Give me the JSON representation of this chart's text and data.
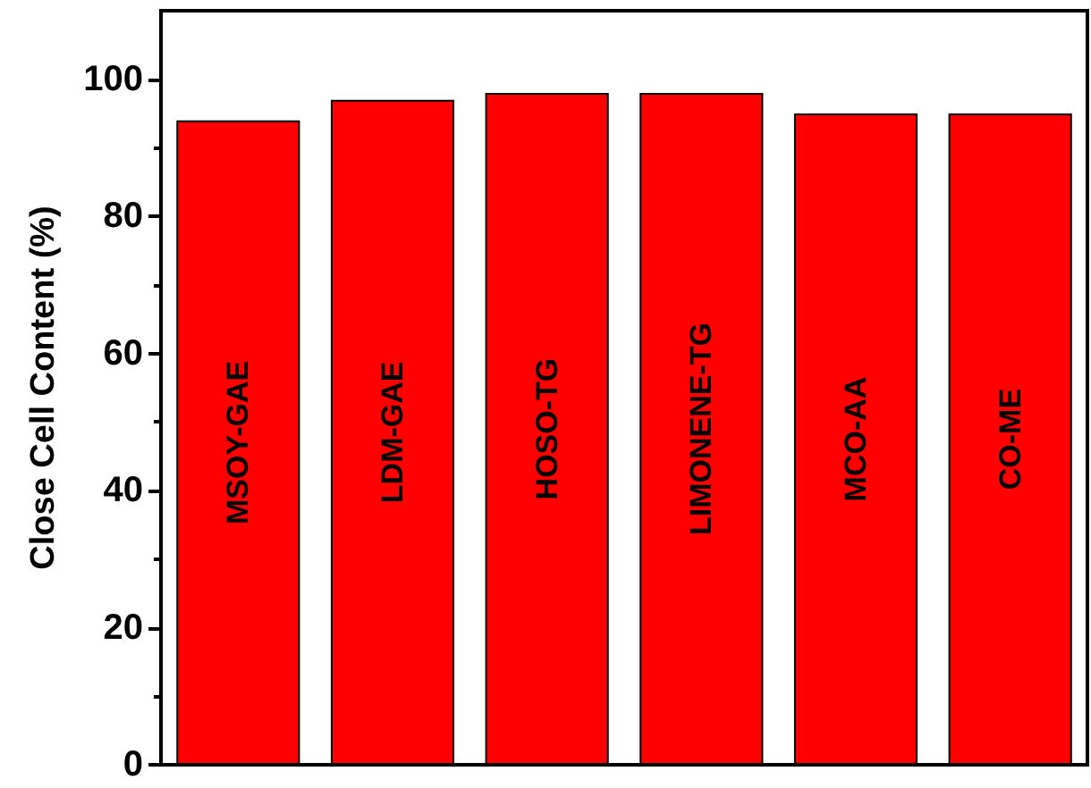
{
  "chart_data": {
    "type": "bar",
    "ylabel": "Close Cell Content (%)",
    "categories": [
      "MSOY-GAE",
      "LDM-GAE",
      "HOSO-TG",
      "LIMONENE-TG",
      "MCO-AA",
      "CO-ME"
    ],
    "values": [
      94,
      97,
      98,
      98,
      95,
      95
    ],
    "color": "#ff0000",
    "ylim": [
      0,
      110
    ],
    "yticks": [
      0,
      20,
      40,
      60,
      80,
      100
    ],
    "grid": false,
    "tick_labels": "y"
  }
}
